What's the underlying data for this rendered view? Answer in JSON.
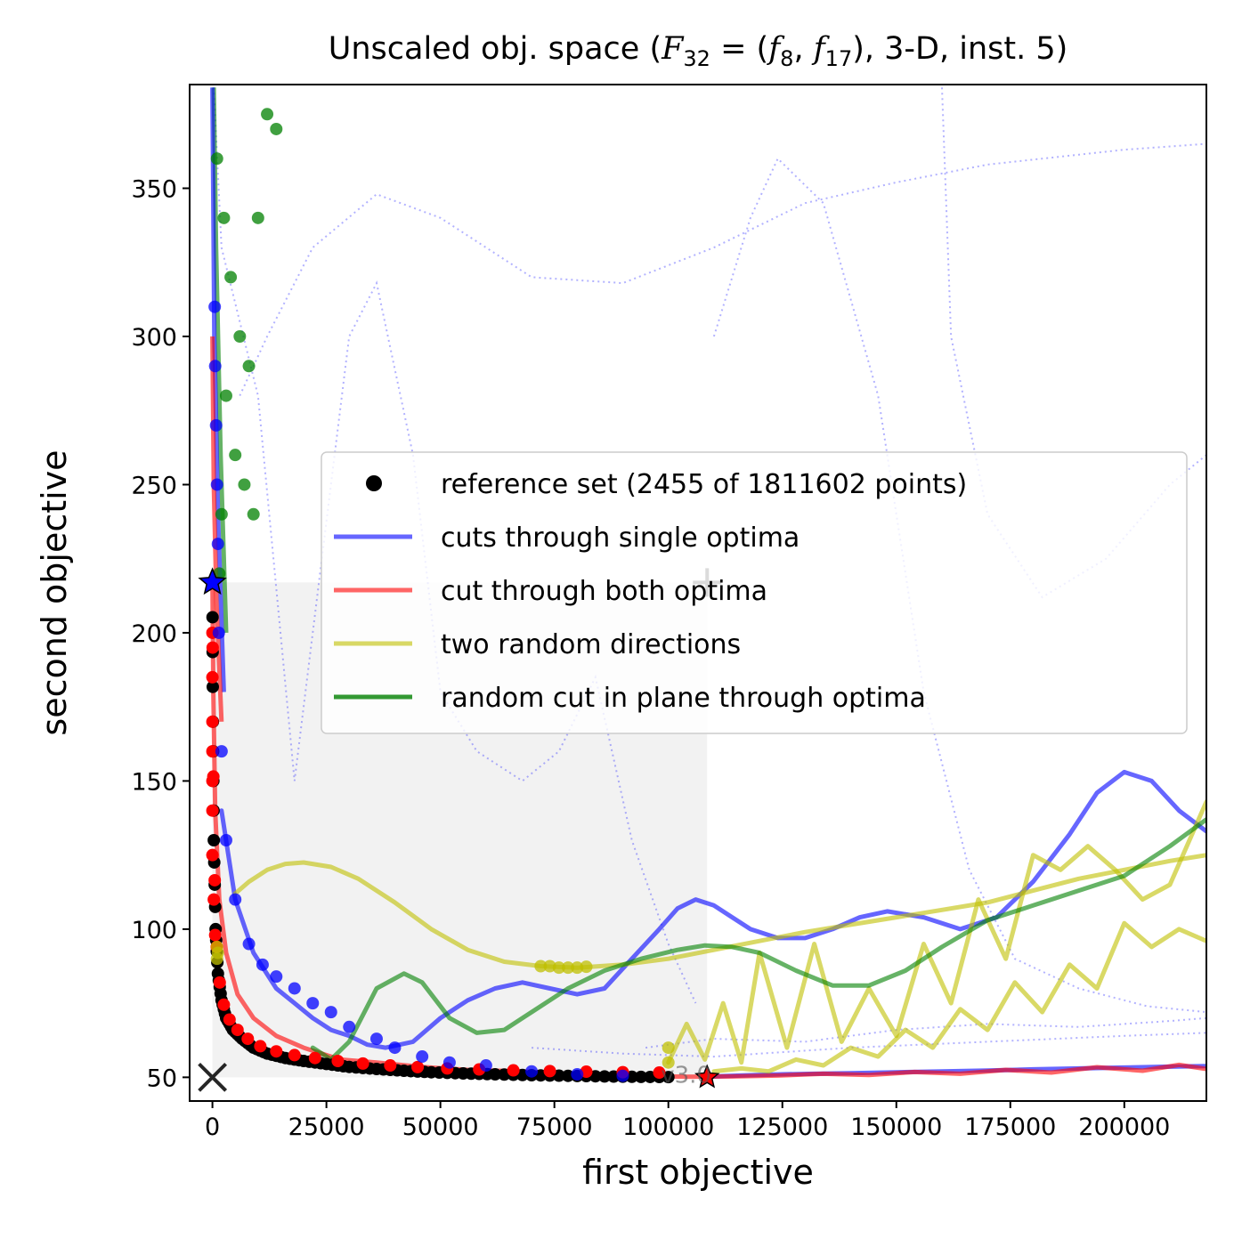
{
  "chart_data": {
    "type": "line",
    "title": "Unscaled obj. space (F32 = (f8, f17), 3-D, inst. 5)",
    "title_parts": {
      "prefix": "Unscaled obj. space (",
      "F": "F",
      "F_sub": "32",
      "eq": " = (",
      "f1": "f",
      "f1_sub": "8",
      "comma": ", ",
      "f2": "f",
      "f2_sub": "17",
      "suffix": "), 3-D, inst. 5)"
    },
    "xlabel": "first objective",
    "ylabel": "second objective",
    "xlim": [
      -5000,
      218000
    ],
    "ylim": [
      42,
      385
    ],
    "xticks": [
      0,
      25000,
      50000,
      75000,
      100000,
      125000,
      150000,
      175000,
      200000
    ],
    "xtick_labels": [
      "0",
      "25000",
      "50000",
      "75000",
      "100000",
      "125000",
      "150000",
      "175000",
      "200000"
    ],
    "yticks": [
      50,
      100,
      150,
      200,
      250,
      300,
      350
    ],
    "ytick_labels": [
      "50",
      "100",
      "150",
      "200",
      "250",
      "300",
      "350"
    ],
    "legend": {
      "placement": "center-right",
      "entries": [
        {
          "label": "reference set (2455 of 1811602 points)",
          "marker": "dot",
          "color": "#000000"
        },
        {
          "label": "cuts through single optima",
          "marker": "line",
          "color": "#0000ff"
        },
        {
          "label": "cut through both optima",
          "marker": "line",
          "color": "#ff0000"
        },
        {
          "label": "two random directions",
          "marker": "line",
          "color": "#bfbf00"
        },
        {
          "label": "random cut in plane through optima",
          "marker": "line",
          "color": "#008000"
        }
      ]
    },
    "annotation": "v3.0",
    "ideal_point": [
      0,
      50
    ],
    "nadir_point": [
      108500,
      217
    ],
    "optima": [
      [
        0,
        217
      ],
      [
        108500,
        50
      ]
    ],
    "reference_set": {
      "x": [
        0,
        100,
        300,
        700,
        1200,
        2000,
        3000,
        4500,
        6500,
        9000,
        12000,
        16000,
        20000,
        25000,
        30000,
        36000,
        42000,
        48000,
        55000,
        62000,
        70000,
        78000,
        86000,
        94000,
        102000
      ],
      "y": [
        217,
        170,
        130,
        100,
        85,
        76,
        70,
        66,
        63,
        60,
        58,
        56.5,
        55.5,
        54.5,
        53.5,
        52.8,
        52.2,
        51.7,
        51.3,
        51,
        50.7,
        50.5,
        50.3,
        50.15,
        50.05
      ]
    },
    "series": [
      {
        "name": "cuts through single optima",
        "color": "#0000ff",
        "x": [
          108500,
          112000,
          118000,
          125000,
          132000,
          140000,
          150000,
          160000,
          170000,
          180000,
          190000,
          200000,
          210000,
          218000
        ],
        "y": [
          50.2,
          50.4,
          50.7,
          51,
          51.2,
          51.4,
          51.7,
          52,
          52.3,
          52.7,
          53,
          53.3,
          53.6,
          53.8
        ]
      },
      {
        "name": "cuts through single optima",
        "color": "#0000ff",
        "x": [
          2000,
          5000,
          9000,
          14000,
          18000,
          22000,
          26000,
          30000,
          34000,
          38000,
          44000,
          50000,
          56000,
          62000,
          68000,
          74000,
          80000,
          86000,
          92000,
          98000,
          102000,
          106000,
          110000,
          114000,
          118000,
          124000,
          130000,
          136000,
          142000,
          148000,
          156000,
          164000,
          172000,
          180000,
          188000,
          194000,
          200000,
          206000,
          212000,
          218000
        ],
        "y": [
          140,
          110,
          92,
          80,
          75,
          70,
          66,
          64,
          61,
          60,
          62,
          70,
          76,
          80,
          82,
          80,
          78,
          80,
          90,
          100,
          107,
          110,
          108,
          104,
          100,
          97,
          97,
          100,
          104,
          106,
          104,
          100,
          104,
          116,
          132,
          146,
          153,
          150,
          140,
          133
        ]
      },
      {
        "name": "cut through both optima",
        "color": "#ff0000",
        "x": [
          0,
          200,
          600,
          1500,
          3000,
          5500,
          9000,
          14000,
          20000,
          28000,
          36000,
          46000,
          56000,
          68000,
          80000,
          92000,
          104000,
          114000,
          124000,
          134000,
          144000,
          154000,
          164000,
          174000,
          184000,
          194000,
          204000,
          212000,
          218000
        ],
        "y": [
          217,
          180,
          140,
          110,
          92,
          78,
          70,
          64,
          60,
          56,
          55,
          53.5,
          52.5,
          52,
          51,
          50.5,
          50.2,
          50.3,
          50.6,
          51.2,
          50.8,
          51.8,
          51.2,
          52.5,
          51.6,
          53.4,
          52.2,
          54.2,
          52.8
        ]
      },
      {
        "name": "two random directions",
        "color": "#bfbf00",
        "x": [
          5000,
          8000,
          12000,
          16000,
          20000,
          26000,
          32000,
          40000,
          48000,
          56000,
          64000,
          72000,
          80000,
          90000,
          100000,
          110000,
          120000,
          130000,
          140000,
          150000,
          160000,
          170000,
          180000,
          190000,
          200000,
          210000,
          218000
        ],
        "y": [
          112,
          116,
          120,
          122,
          122.5,
          121,
          117,
          109,
          100,
          93,
          89,
          87.5,
          87,
          88,
          90,
          93,
          96,
          99,
          101.5,
          104,
          106.5,
          109,
          113,
          117,
          120,
          123,
          125
        ]
      },
      {
        "name": "two random directions",
        "color": "#bfbf00",
        "x": [
          100000,
          104000,
          108000,
          112000,
          116000,
          120000,
          126000,
          132000,
          138000,
          144000,
          150000,
          156000,
          162000,
          168000,
          174000,
          180000,
          186000,
          192000,
          198000,
          204000,
          210000,
          218000
        ],
        "y": [
          55,
          68,
          56,
          75,
          55,
          92,
          60,
          95,
          62,
          80,
          64,
          95,
          75,
          110,
          90,
          125,
          120,
          128,
          120,
          110,
          115,
          143
        ]
      },
      {
        "name": "two random directions",
        "color": "#bfbf00",
        "x": [
          110000,
          116000,
          122000,
          128000,
          134000,
          140000,
          146000,
          152000,
          158000,
          164000,
          170000,
          176000,
          182000,
          188000,
          194000,
          200000,
          206000,
          212000,
          218000
        ],
        "y": [
          52,
          53,
          52,
          56,
          54,
          60,
          57,
          66,
          60,
          73,
          66,
          82,
          72,
          88,
          80,
          102,
          94,
          100,
          96
        ]
      },
      {
        "name": "random cut in plane through optima",
        "color": "#008000",
        "x": [
          22000,
          26000,
          30000,
          36000,
          42000,
          46000,
          52000,
          58000,
          64000,
          70000,
          78000,
          86000,
          94000,
          102000,
          108000,
          114000,
          120000,
          128000,
          136000,
          144000,
          152000,
          160000,
          170000,
          180000,
          190000,
          200000,
          210000,
          218000
        ],
        "y": [
          60,
          56,
          62,
          80,
          85,
          82,
          70,
          65,
          66,
          72,
          80,
          86,
          90,
          93,
          94.5,
          94,
          92,
          86,
          81,
          81,
          86,
          94,
          103,
          108,
          113,
          118,
          128,
          137
        ]
      }
    ]
  }
}
